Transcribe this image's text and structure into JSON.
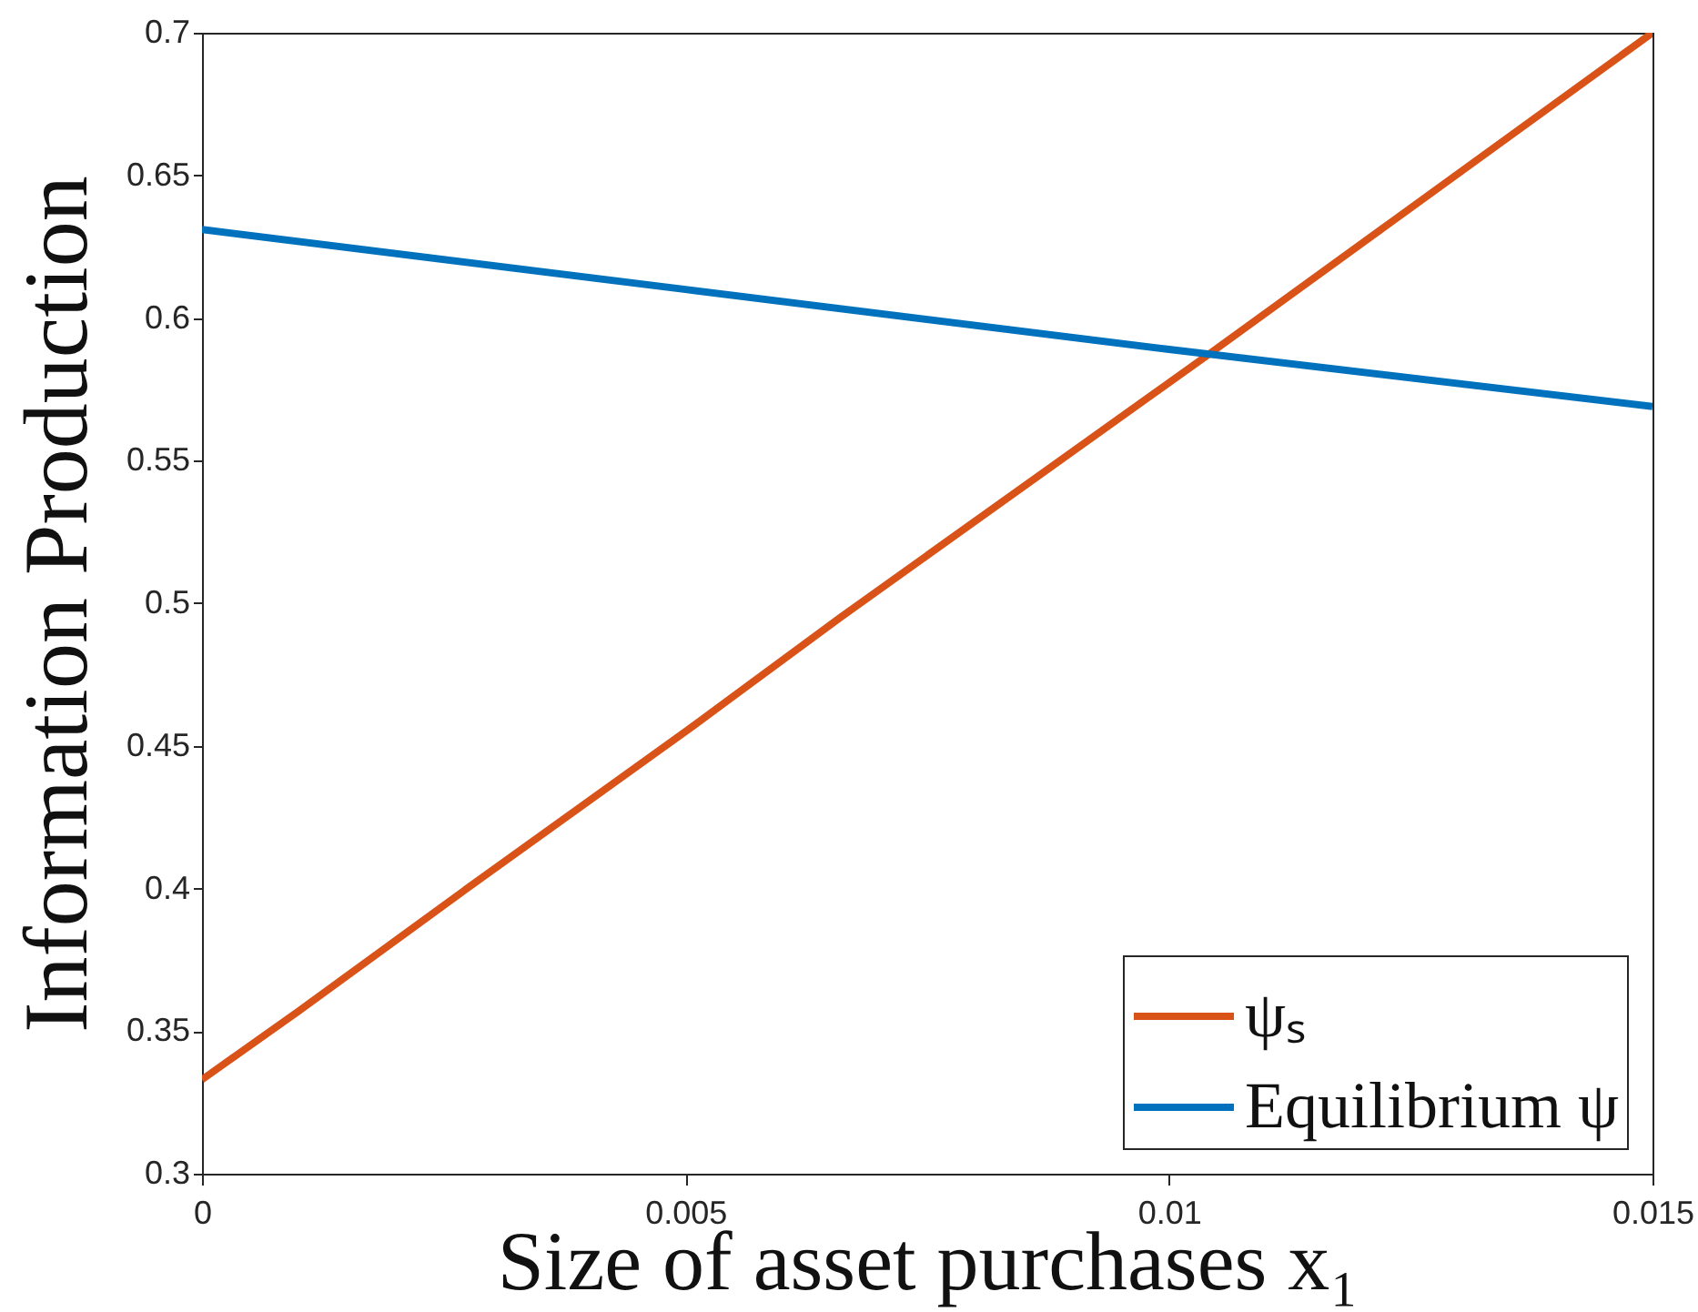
{
  "chart_data": {
    "type": "line",
    "xlabel": "Size of asset purchases x₁",
    "ylabel": "Information Production",
    "series": [
      {
        "name": "ψₛ",
        "color": "#d95319",
        "x": [
          0,
          0.001,
          0.0027,
          0.005,
          0.0066,
          0.0104,
          0.015
        ],
        "values": [
          0.333,
          0.357,
          0.399,
          0.455,
          0.495,
          0.587,
          0.7
        ]
      },
      {
        "name": "Equilibrium ψ",
        "color": "#0072bd",
        "x": [
          0,
          0.005,
          0.01,
          0.015
        ],
        "values": [
          0.631,
          0.61,
          0.589,
          0.569
        ]
      }
    ],
    "xlim": [
      0,
      0.015
    ],
    "xticks": [
      0,
      0.005,
      0.01,
      0.015
    ],
    "ylim": [
      0.3,
      0.7
    ],
    "yticks": [
      0.3,
      0.35,
      0.4,
      0.45,
      0.5,
      0.55,
      0.6,
      0.65,
      0.7
    ],
    "grid": false,
    "legend": "bottom right"
  }
}
